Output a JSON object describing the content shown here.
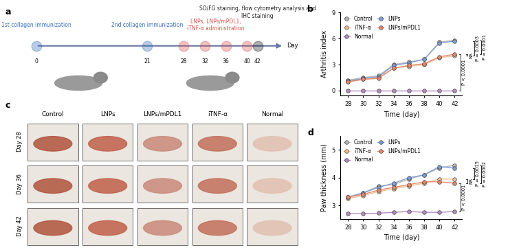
{
  "panel_labels": [
    "a",
    "b",
    "c",
    "d"
  ],
  "timeline": {
    "days": [
      0,
      21,
      28,
      32,
      36,
      40,
      42
    ],
    "axis_label": "Day",
    "events": [
      {
        "days": [
          0
        ],
        "lines": [
          "1st collagen immunization"
        ],
        "color": "#3a6fb5"
      },
      {
        "days": [
          21
        ],
        "lines": [
          "2nd collagen immunization"
        ],
        "color": "#3a6fb5"
      },
      {
        "days": [
          28,
          32,
          36,
          40
        ],
        "lines": [
          "LNPs, LNPs/mPDL1,",
          "iTNF-α administration"
        ],
        "color": "#d9534f"
      },
      {
        "days": [
          42
        ],
        "lines": [
          "SO/FG staining, flow cytometry analysis and",
          "IHC staining"
        ],
        "color": "#222222"
      }
    ]
  },
  "photos": {
    "columns": [
      "Control",
      "LNPs",
      "LNPs/mPDL1",
      "iTNF-α",
      "Normal"
    ],
    "rows": [
      "Day 28",
      "Day 36",
      "Day 42"
    ]
  },
  "chart_data": [
    {
      "type": "line",
      "xlabel": "Time (day)",
      "ylabel": "Arthritis index",
      "x": [
        28,
        30,
        32,
        34,
        36,
        38,
        40,
        42
      ],
      "xlim": [
        27,
        43
      ],
      "xticks": [
        28,
        30,
        32,
        34,
        36,
        38,
        40,
        42
      ],
      "ylim": [
        -0.6,
        9
      ],
      "yticks": [
        0,
        3,
        6,
        9
      ],
      "legend": "upper left",
      "marker": "o",
      "grid": false,
      "series": [
        {
          "name": "Control",
          "color": "#b5b5b5",
          "values": [
            1.2,
            1.5,
            1.7,
            3.0,
            3.3,
            3.6,
            5.6,
            5.8
          ]
        },
        {
          "name": "iTNF-α",
          "color": "#f3bf93",
          "values": [
            1.0,
            1.3,
            1.5,
            2.6,
            2.8,
            3.0,
            3.8,
            4.0
          ]
        },
        {
          "name": "Normal",
          "color": "#b48ac0",
          "values": [
            0,
            0,
            0,
            0,
            0,
            0,
            0,
            0
          ]
        },
        {
          "name": "LNPs",
          "color": "#7f9fd6",
          "values": [
            1.1,
            1.4,
            1.6,
            2.9,
            3.2,
            3.6,
            5.5,
            5.7
          ]
        },
        {
          "name": "LNPs/mPDL1",
          "color": "#e8896b",
          "values": [
            1.0,
            1.3,
            1.4,
            2.6,
            2.9,
            3.1,
            3.9,
            4.2
          ]
        }
      ],
      "annotations": [
        {
          "text": "P < 0.0001",
          "between": [
            "LNPs/mPDL1",
            "Normal"
          ]
        },
        {
          "text": "NS",
          "between": [
            "iTNF-α",
            "LNPs/mPDL1"
          ]
        },
        {
          "text": "P = 0.0003",
          "between": [
            "LNPs",
            "iTNF-α"
          ]
        },
        {
          "text": "P = 0.0001",
          "between": [
            "Control",
            "LNPs/mPDL1"
          ]
        }
      ]
    },
    {
      "type": "line",
      "xlabel": "Time (day)",
      "ylabel": "Paw thickness (mm)",
      "x": [
        28,
        30,
        32,
        34,
        36,
        38,
        40,
        42
      ],
      "xlim": [
        27,
        43
      ],
      "xticks": [
        28,
        30,
        32,
        34,
        36,
        38,
        40,
        42
      ],
      "ylim": [
        2.5,
        5.5
      ],
      "yticks": [
        3,
        4,
        5
      ],
      "legend": "upper left",
      "marker": "o",
      "grid": false,
      "series": [
        {
          "name": "Control",
          "color": "#b5b5b5",
          "values": [
            3.3,
            3.45,
            3.7,
            3.75,
            3.95,
            4.1,
            4.35,
            4.45
          ]
        },
        {
          "name": "iTNF-α",
          "color": "#f3bf93",
          "values": [
            3.25,
            3.35,
            3.5,
            3.6,
            3.7,
            3.8,
            3.95,
            3.95
          ]
        },
        {
          "name": "Normal",
          "color": "#b48ac0",
          "values": [
            2.7,
            2.7,
            2.72,
            2.75,
            2.78,
            2.75,
            2.75,
            2.78
          ]
        },
        {
          "name": "LNPs",
          "color": "#7f9fd6",
          "values": [
            3.3,
            3.45,
            3.65,
            3.8,
            4.0,
            4.1,
            4.4,
            4.35
          ]
        },
        {
          "name": "LNPs/mPDL1",
          "color": "#e8896b",
          "values": [
            3.3,
            3.4,
            3.55,
            3.65,
            3.75,
            3.85,
            3.85,
            3.8
          ]
        }
      ],
      "annotations": [
        {
          "text": "P < 0.0001",
          "between": [
            "LNPs/mPDL1",
            "Normal"
          ]
        },
        {
          "text": "NS",
          "between": [
            "iTNF-α",
            "LNPs/mPDL1"
          ]
        },
        {
          "text": "P = 0.0015",
          "between": [
            "LNPs",
            "iTNF-α"
          ]
        },
        {
          "text": "P = 0.0002",
          "between": [
            "Control",
            "LNPs/mPDL1"
          ]
        }
      ]
    }
  ]
}
